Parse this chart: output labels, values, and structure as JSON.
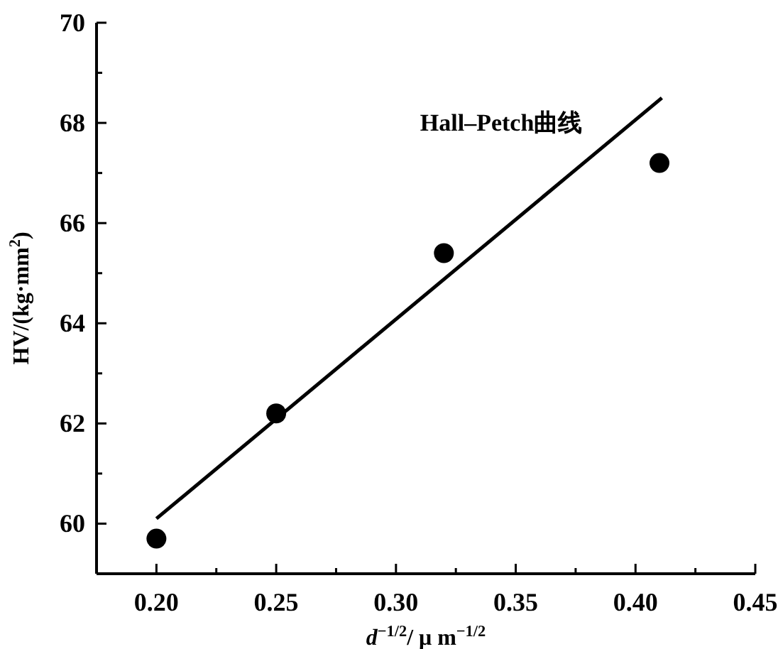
{
  "chart_data": {
    "type": "scatter",
    "xlabel": "*d*$^{−1/2}$/ μ m$^{−1/2}$",
    "ylabel": "HV/(kg·mm$^{2}$)",
    "xlim": [
      0.175,
      0.45
    ],
    "ylim": [
      59,
      70
    ],
    "xticks": [
      {
        "value": 0.2,
        "label": "0.20"
      },
      {
        "value": 0.225,
        "label": null
      },
      {
        "value": 0.25,
        "label": "0.25"
      },
      {
        "value": 0.275,
        "label": null
      },
      {
        "value": 0.3,
        "label": "0.30"
      },
      {
        "value": 0.325,
        "label": null
      },
      {
        "value": 0.35,
        "label": "0.35"
      },
      {
        "value": 0.375,
        "label": null
      },
      {
        "value": 0.4,
        "label": "0.40"
      },
      {
        "value": 0.425,
        "label": null
      },
      {
        "value": 0.45,
        "label": "0.45"
      }
    ],
    "yticks": [
      {
        "value": 59,
        "label": null
      },
      60,
      {
        "value": 61,
        "label": null
      },
      62,
      {
        "value": 63,
        "label": null
      },
      64,
      {
        "value": 65,
        "label": null
      },
      66,
      {
        "value": 67,
        "label": null
      },
      68,
      {
        "value": 69,
        "label": null
      },
      70
    ],
    "series": [
      {
        "marker": "circle",
        "color": "#000000",
        "x": [
          0.2,
          0.25,
          0.32,
          0.41
        ],
        "values": [
          59.7,
          62.2,
          65.4,
          67.2
        ]
      },
      {
        "type": "line",
        "name": "Hall–Petch曲线",
        "color": "#000000",
        "line_style": "solid",
        "x": [
          0.2,
          0.411
        ],
        "values": [
          60.1,
          68.5
        ]
      }
    ]
  }
}
